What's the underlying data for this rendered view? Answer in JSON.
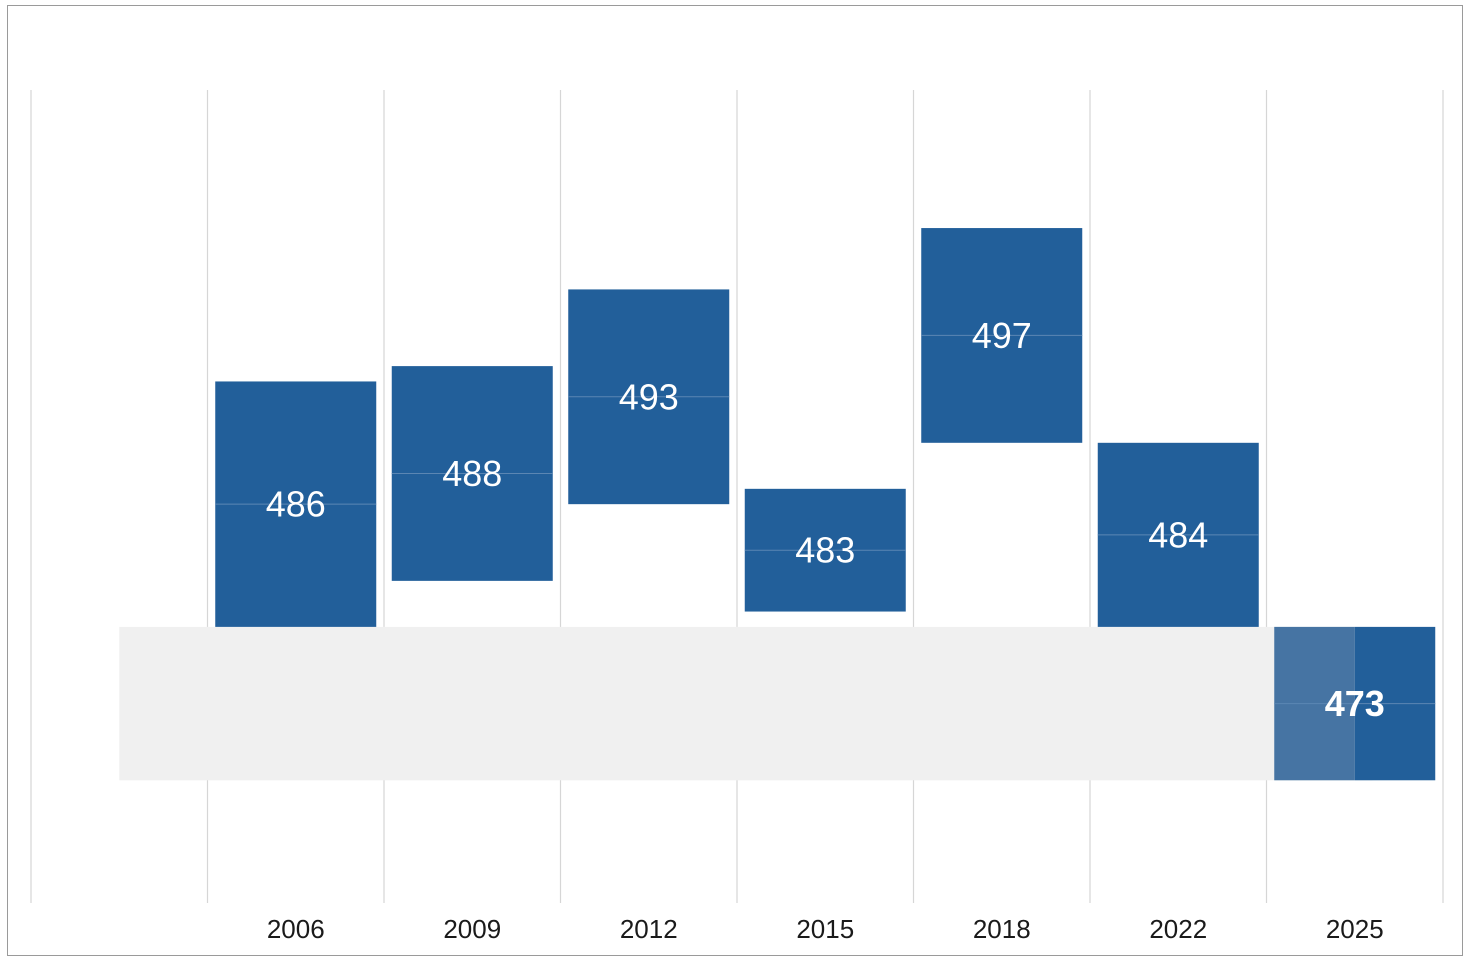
{
  "chart_data": {
    "type": "bar",
    "categories": [
      "2006",
      "2009",
      "2012",
      "2015",
      "2018",
      "2022",
      "2025"
    ],
    "values": [
      486,
      488,
      493,
      483,
      497,
      484,
      473
    ],
    "interval_low": [
      478,
      481,
      486,
      479,
      490,
      478,
      468
    ],
    "interval_high": [
      494,
      495,
      500,
      487,
      504,
      490,
      478
    ],
    "highlight_category": "2025",
    "reference_band": [
      468,
      478
    ],
    "title": "",
    "xlabel": "",
    "ylabel": "",
    "ylim": [
      460,
      513
    ],
    "grid": true,
    "colors": {
      "bar": "#225f9a",
      "bar_in_band": "#4674a3",
      "band": "#f0f0f0",
      "grid": "#d6d6d6",
      "label": "#ffffff"
    }
  }
}
